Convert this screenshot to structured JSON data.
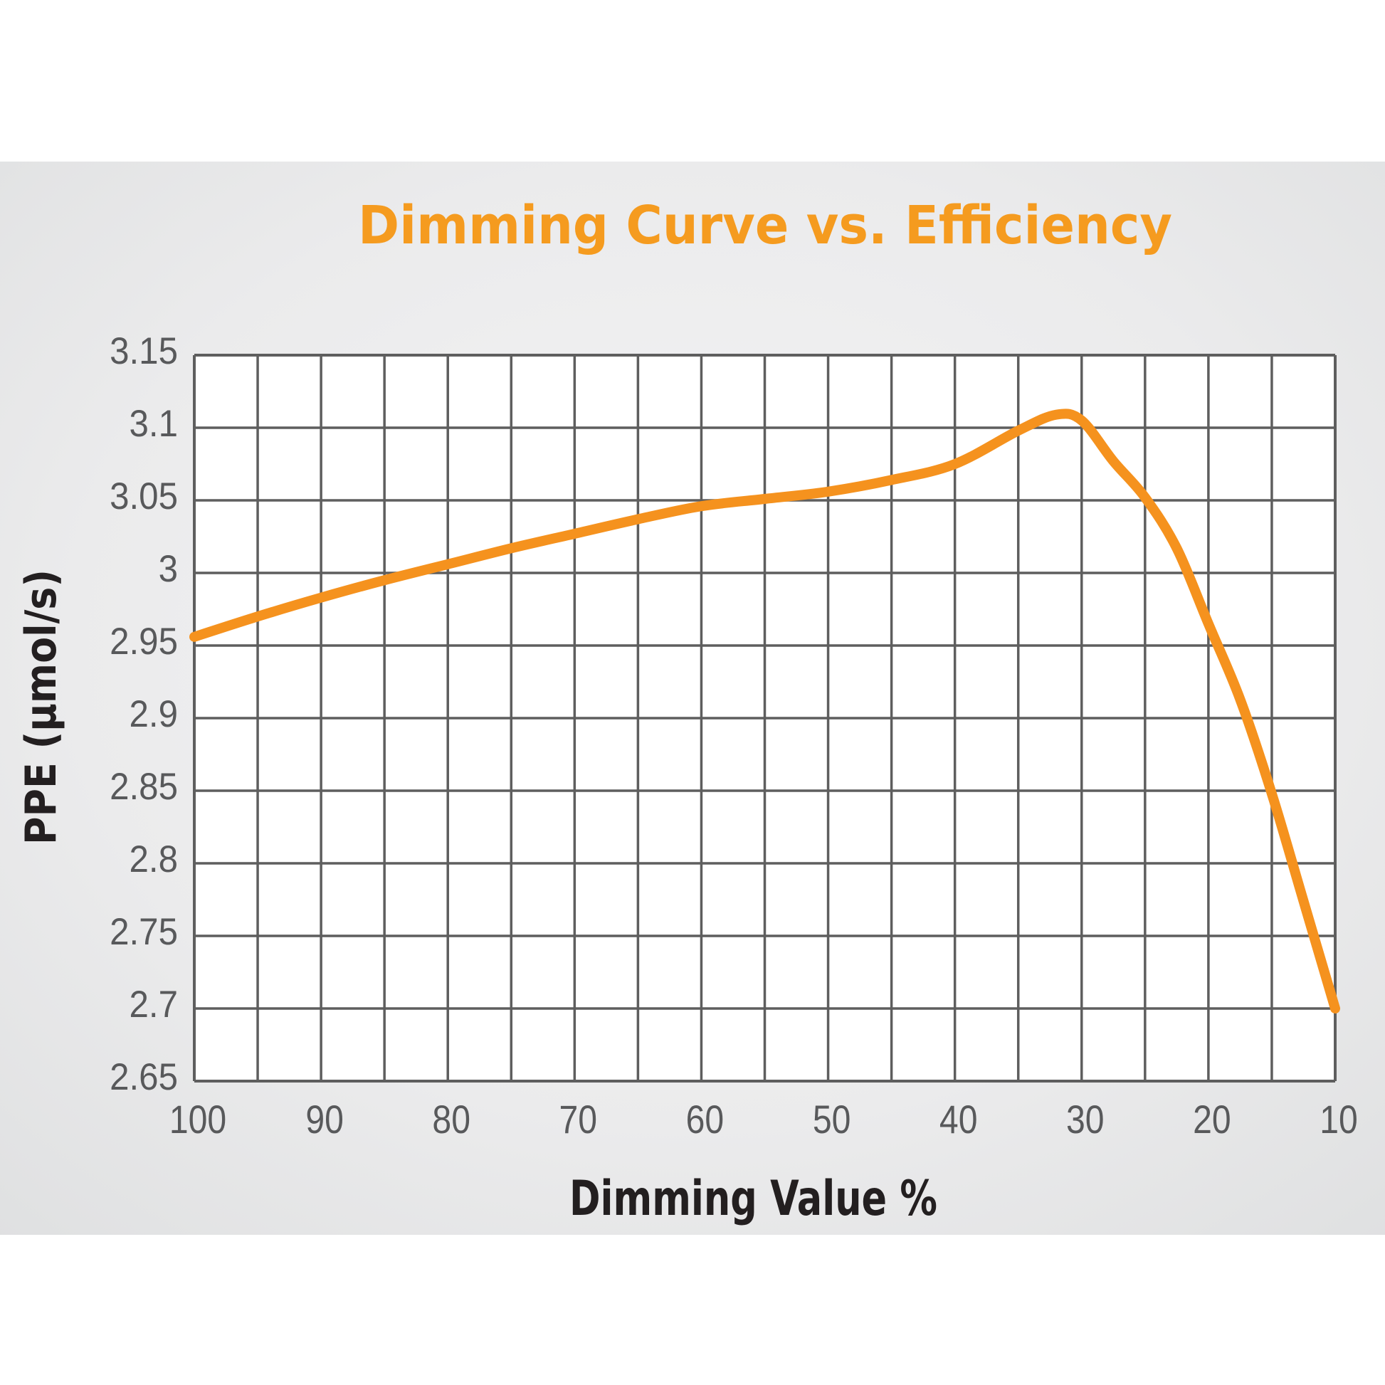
{
  "chart_data": {
    "type": "line",
    "title": "Dimming Curve vs. Efficiency",
    "xlabel": "Dimming Value %",
    "ylabel": "PPE (μmol/s)",
    "xlim": [
      100,
      10
    ],
    "ylim": [
      2.65,
      3.15
    ],
    "x_reversed": true,
    "grid": true,
    "legend": "none",
    "x_tick_labels": [
      "100",
      "90",
      "80",
      "70",
      "60",
      "50",
      "40",
      "30",
      "20",
      "10"
    ],
    "y_tick_labels": [
      "3.15",
      "3.1",
      "3.05",
      "3",
      "2.95",
      "2.9",
      "2.85",
      "2.8",
      "2.75",
      "2.7",
      "2.65"
    ],
    "x_grid_step": 5,
    "y_grid_step": 0.05,
    "series": [
      {
        "name": "PPE",
        "color": "#F5921E",
        "x": [
          100,
          95,
          90,
          85,
          80,
          75,
          70,
          65,
          60,
          55,
          50,
          45,
          40,
          35,
          32,
          30,
          27.5,
          25,
          22.5,
          20,
          17.5,
          15,
          12.5,
          10
        ],
        "y": [
          2.956,
          2.97,
          2.983,
          2.995,
          3.006,
          3.017,
          3.027,
          3.037,
          3.046,
          3.051,
          3.056,
          3.064,
          3.075,
          3.098,
          3.109,
          3.105,
          3.077,
          3.052,
          3.017,
          2.965,
          2.913,
          2.848,
          2.774,
          2.7
        ]
      }
    ]
  },
  "colors": {
    "title": "#F59B1F",
    "axis_title": "#231F20",
    "tick_label": "#58595B",
    "grid": "#5E5E5E",
    "plot_bg": "#FFFFFF",
    "panel": "#E8E9EA"
  }
}
